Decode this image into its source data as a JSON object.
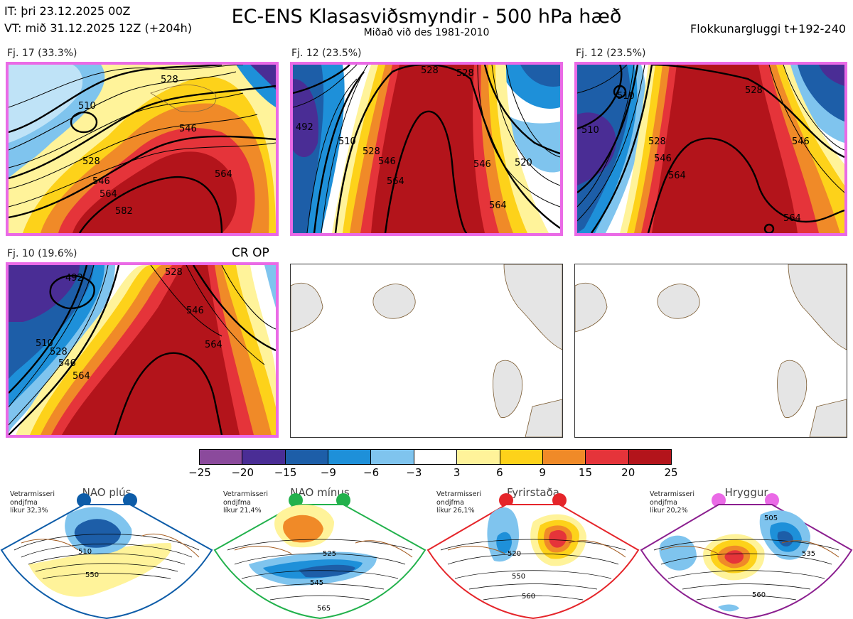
{
  "header": {
    "issue_time": "IT: þri 23.12.2025 00Z",
    "valid_time": "VT: mið 31.12.2025 12Z  (+204h)",
    "title": "EC-ENS Klasasviðsmyndir - 500 hPa hæð",
    "subtitle": "Miðað við des 1981-2010",
    "window": "Flokkunargluggi t+192-240"
  },
  "clusters": [
    {
      "label": "Fj. 17 (33.3%)",
      "contours": [
        "510",
        "528",
        "546",
        "564",
        "528",
        "546",
        "564",
        "582"
      ]
    },
    {
      "label": "Fj. 12 (23.5%)",
      "contours": [
        "528",
        "528",
        "492",
        "510",
        "528",
        "546",
        "564",
        "546",
        "520",
        "564"
      ]
    },
    {
      "label": "Fj. 12 (23.5%)",
      "contours": [
        "510",
        "528",
        "546",
        "510",
        "528",
        "546",
        "564",
        "564"
      ]
    },
    {
      "label": "Fj. 10 (19.6%)",
      "contours": [
        "492",
        "510",
        "528",
        "546",
        "564",
        "546",
        "564",
        "528"
      ]
    }
  ],
  "cr_op": "CR OP",
  "colorbar": {
    "ticks": [
      "−25",
      "−20",
      "−15",
      "−9",
      "−6",
      "−3",
      "3",
      "6",
      "9",
      "15",
      "20",
      "25"
    ],
    "colors": [
      "#8b4a9c",
      "#4a2d95",
      "#1d5ea8",
      "#1e90d9",
      "#7fc4ee",
      "#ffffff",
      "#fff39a",
      "#fdd21a",
      "#f08a28",
      "#e5343a",
      "#b3141b"
    ]
  },
  "regimes": [
    {
      "name": "NAO plús",
      "text": [
        "Vetrarmisseri",
        "ondjfma",
        "líkur 32,3%"
      ],
      "color": "#0d5ca8",
      "contours": [
        "510",
        "550"
      ]
    },
    {
      "name": "NAO mínus",
      "text": [
        "Vetrarmisseri",
        "ondjfma",
        "líkur 21,4%"
      ],
      "color": "#22b14c",
      "contours": [
        "525",
        "545",
        "565"
      ]
    },
    {
      "name": "Fyrirstaða",
      "text": [
        "Vetrarmisseri",
        "ondjfma",
        "líkur 26,1%"
      ],
      "color": "#e5252a",
      "contours": [
        "520",
        "550",
        "560"
      ]
    },
    {
      "name": "Hryggur",
      "text": [
        "Vetrarmisseri",
        "ondjfma",
        "líkur 20,2%"
      ],
      "color": "#ea6ae6",
      "contours": [
        "505",
        "535",
        "560"
      ]
    }
  ]
}
